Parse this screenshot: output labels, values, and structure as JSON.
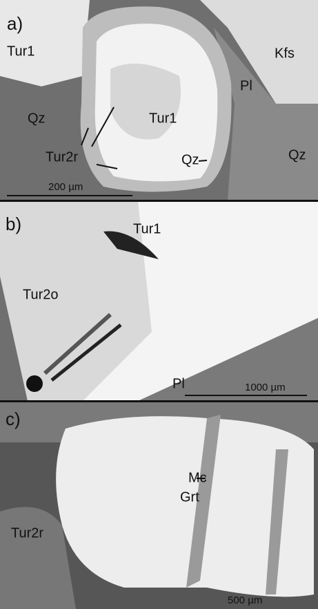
{
  "panels": [
    {
      "label": "a)",
      "annotations": [
        "Tur1",
        "Kfs",
        "Pl",
        "Qz",
        "Tur1",
        "Tur2r",
        "Qz",
        "Qz"
      ],
      "scale": "200 µm"
    },
    {
      "label": "b)",
      "annotations": [
        "Tur1",
        "Tur2o",
        "Pl"
      ],
      "scale": "1000 µm"
    },
    {
      "label": "c)",
      "annotations": [
        "Grt",
        "Mc",
        "Tur2r"
      ],
      "scale": "500 µm"
    }
  ]
}
